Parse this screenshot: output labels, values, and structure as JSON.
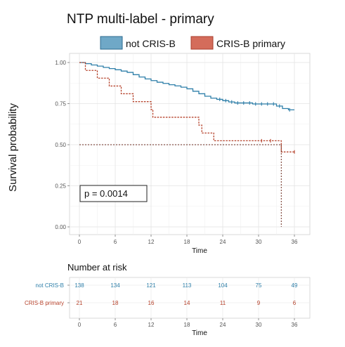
{
  "chart_data": [
    {
      "type": "line",
      "subtype": "kaplan-meier",
      "title": "NTP multi-label  - primary",
      "xlabel": "Time",
      "ylabel": "Survival probability",
      "xlim": [
        0,
        38
      ],
      "ylim": [
        0,
        1.05
      ],
      "x_ticks": [
        0,
        6,
        12,
        18,
        24,
        30,
        36
      ],
      "y_ticks": [
        0.0,
        0.25,
        0.5,
        0.75,
        1.0
      ],
      "y_tick_labels": [
        "0.00",
        "0.25",
        "0.50",
        "0.75",
        "1.00"
      ],
      "grid": true,
      "legend_position": "top",
      "legend": [
        "not CRIS-B",
        "CRIS-B primary"
      ],
      "annotation": "p = 0.0014",
      "median_line": {
        "y": 0.5,
        "x_end": 33.8
      },
      "series": [
        {
          "name": "not CRIS-B",
          "color": "#2e7fa9",
          "fill": "#6fa8c7",
          "line_style": "solid",
          "steps": [
            [
              0,
              1.0
            ],
            [
              1,
              0.993
            ],
            [
              2,
              0.985
            ],
            [
              3,
              0.978
            ],
            [
              4,
              0.97
            ],
            [
              5,
              0.963
            ],
            [
              6,
              0.956
            ],
            [
              7,
              0.948
            ],
            [
              8,
              0.94
            ],
            [
              9,
              0.926
            ],
            [
              10,
              0.912
            ],
            [
              11,
              0.9
            ],
            [
              12,
              0.89
            ],
            [
              13,
              0.88
            ],
            [
              14,
              0.873
            ],
            [
              15,
              0.865
            ],
            [
              16,
              0.858
            ],
            [
              17,
              0.85
            ],
            [
              18,
              0.84
            ],
            [
              19,
              0.825
            ],
            [
              20,
              0.81
            ],
            [
              21,
              0.795
            ],
            [
              22,
              0.783
            ],
            [
              23,
              0.776
            ],
            [
              24,
              0.768
            ],
            [
              25,
              0.76
            ],
            [
              26,
              0.754
            ],
            [
              29,
              0.748
            ],
            [
              33,
              0.735
            ],
            [
              34,
              0.72
            ],
            [
              35,
              0.712
            ],
            [
              36,
              0.712
            ]
          ],
          "censor_x": [
            23.5,
            24.5,
            25.5,
            26.5,
            27.5,
            28.5,
            29.5,
            30.5,
            31.5,
            32.5,
            33.5,
            35.2
          ]
        },
        {
          "name": "CRIS-B primary",
          "color": "#b5412a",
          "fill": "#d46c5b",
          "line_style": "dashed",
          "steps": [
            [
              0,
              1.0
            ],
            [
              1,
              0.952
            ],
            [
              3,
              0.905
            ],
            [
              5,
              0.857
            ],
            [
              7,
              0.81
            ],
            [
              9,
              0.762
            ],
            [
              12,
              0.714
            ],
            [
              12.3,
              0.667
            ],
            [
              20,
              0.619
            ],
            [
              20.5,
              0.571
            ],
            [
              22.5,
              0.524
            ],
            [
              33.8,
              0.524
            ],
            [
              33.8,
              0.456
            ],
            [
              36,
              0.456
            ]
          ],
          "censor_x": [
            30.5,
            32.0,
            36.0
          ],
          "drop_to_zero_x": 33.8
        }
      ]
    },
    {
      "type": "table",
      "title": "Number at risk",
      "xlabel": "Time",
      "x_ticks": [
        0,
        6,
        12,
        18,
        24,
        30,
        36
      ],
      "rows": [
        {
          "name": "not CRIS-B",
          "color": "#2e7fa9",
          "values": [
            138,
            134,
            121,
            113,
            104,
            75,
            49
          ]
        },
        {
          "name": "CRIS-B primary",
          "color": "#b5412a",
          "values": [
            21,
            18,
            16,
            14,
            11,
            9,
            6
          ]
        }
      ]
    }
  ]
}
